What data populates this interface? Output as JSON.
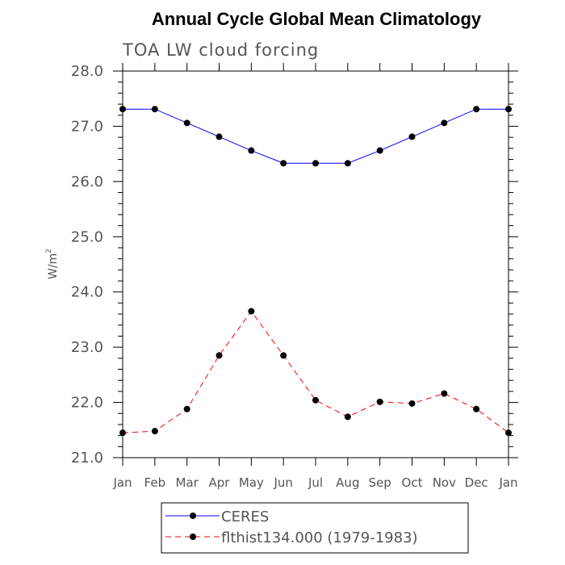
{
  "chart_data": {
    "type": "line",
    "title": "Annual Cycle Global Mean Climatology",
    "subtitle": "TOA LW cloud forcing",
    "xlabel": "",
    "ylabel": "W/m",
    "ylabel_superscript": "2",
    "categories": [
      "Jan",
      "Feb",
      "Mar",
      "Apr",
      "May",
      "Jun",
      "Jul",
      "Aug",
      "Sep",
      "Oct",
      "Nov",
      "Dec",
      "Jan"
    ],
    "ylim": [
      21.0,
      28.0
    ],
    "yticks": [
      "21.0",
      "22.0",
      "23.0",
      "24.0",
      "25.0",
      "26.0",
      "27.0",
      "28.0"
    ],
    "grid": false,
    "legend_position": "bottom",
    "series": [
      {
        "name": "CERES",
        "color": "#0000ff",
        "line_style": "solid",
        "marker": "filled-circle",
        "values": [
          27.31,
          27.31,
          27.06,
          26.81,
          26.56,
          26.33,
          26.33,
          26.33,
          26.56,
          26.81,
          27.06,
          27.31,
          27.31
        ]
      },
      {
        "name": "flthist134.000 (1979-1983)",
        "color": "#ff0000",
        "line_style": "dashed",
        "marker": "filled-circle",
        "values": [
          21.45,
          21.48,
          21.88,
          22.85,
          23.65,
          22.85,
          22.04,
          21.74,
          22.01,
          21.98,
          22.16,
          21.88,
          21.45
        ]
      }
    ]
  }
}
